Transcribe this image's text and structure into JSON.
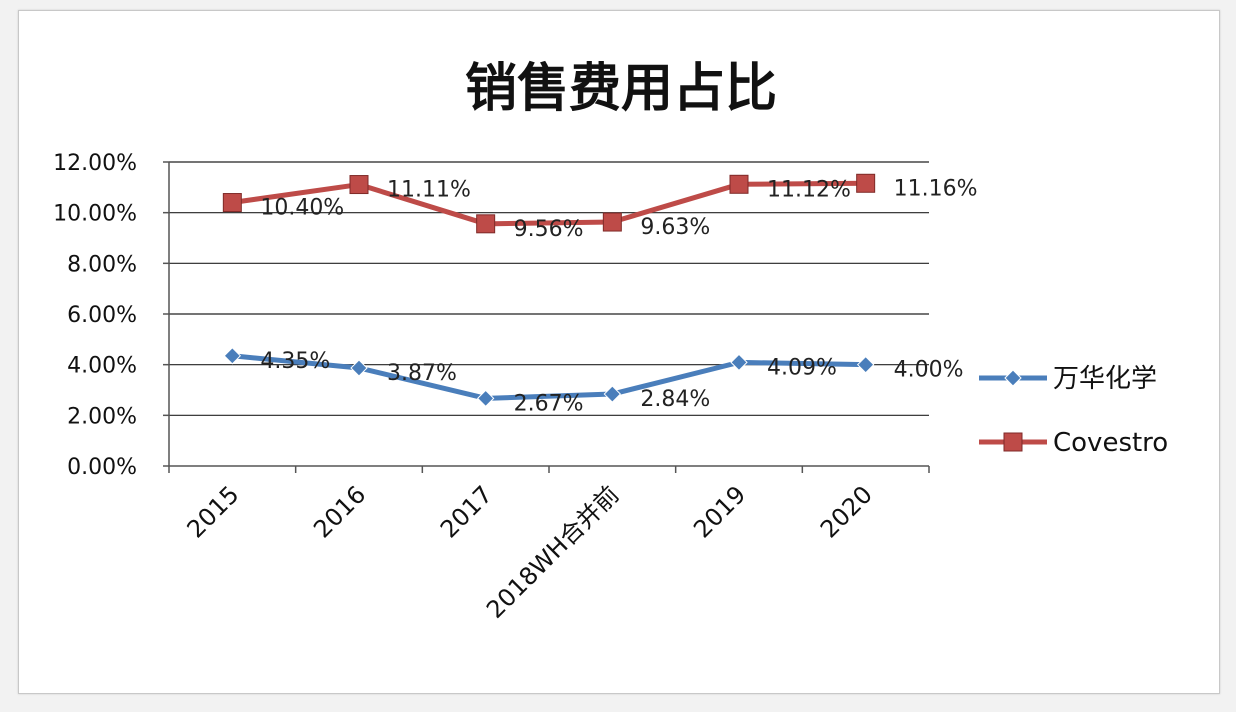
{
  "chart_data": {
    "type": "line",
    "title": "销售费用占比",
    "categories": [
      "2015",
      "2016",
      "2017",
      "2018WH合并前",
      "2019",
      "2020"
    ],
    "series": [
      {
        "name": "万华化学",
        "values": [
          4.35,
          3.87,
          2.67,
          2.84,
          4.09,
          4.0
        ],
        "labels": [
          "4.35%",
          "3.87%",
          "2.67%",
          "2.84%",
          "4.09%",
          "4.00%"
        ],
        "color": "#4a7ebb",
        "marker": "diamond"
      },
      {
        "name": "Covestro",
        "values": [
          10.4,
          11.11,
          9.56,
          9.63,
          11.12,
          11.16
        ],
        "labels": [
          "10.40%",
          "11.11%",
          "9.56%",
          "9.63%",
          "11.12%",
          "11.16%"
        ],
        "color": "#be4b48",
        "marker": "square"
      }
    ],
    "yticks": [
      "0.00%",
      "2.00%",
      "4.00%",
      "6.00%",
      "8.00%",
      "10.00%",
      "12.00%"
    ],
    "ylim": [
      0,
      12
    ],
    "grid": true,
    "legend": "right"
  }
}
